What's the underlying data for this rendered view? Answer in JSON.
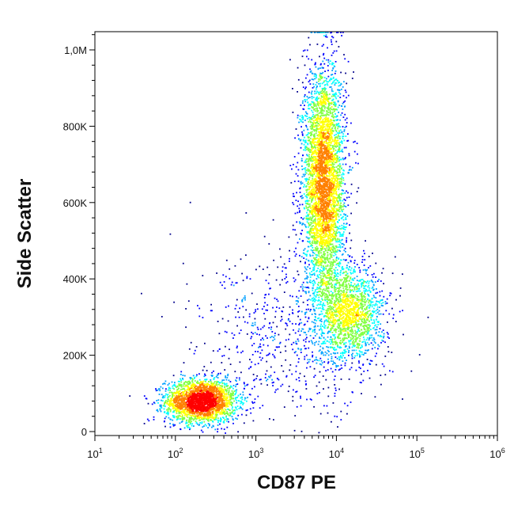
{
  "chart_data": {
    "type": "scatter",
    "title": "",
    "xlabel": "CD87 PE",
    "ylabel": "Side Scatter",
    "x_scale": "log",
    "xlim": [
      10,
      1000000
    ],
    "ylim": [
      0,
      1050000
    ],
    "grid": false,
    "x_ticks": [
      {
        "value": 10,
        "base": "10",
        "exp": "1"
      },
      {
        "value": 100,
        "base": "10",
        "exp": "2"
      },
      {
        "value": 1000,
        "base": "10",
        "exp": "3"
      },
      {
        "value": 10000,
        "base": "10",
        "exp": "4"
      },
      {
        "value": 100000,
        "base": "10",
        "exp": "5"
      },
      {
        "value": 1000000,
        "base": "10",
        "exp": "6"
      }
    ],
    "y_ticks": [
      {
        "value": 0,
        "label": "0"
      },
      {
        "value": 200000,
        "label": "200K"
      },
      {
        "value": 400000,
        "label": "400K"
      },
      {
        "value": 600000,
        "label": "600K"
      },
      {
        "value": 800000,
        "label": "800K"
      },
      {
        "value": 1000000,
        "label": "1,0M"
      }
    ],
    "colormap": [
      "#00008b",
      "#0000ff",
      "#00a0ff",
      "#00ffff",
      "#80ff40",
      "#ffff00",
      "#ff8000",
      "#ff0000"
    ],
    "populations": [
      {
        "center_x": 210,
        "center_y": 80000,
        "spread_log_x": 0.22,
        "spread_y": 28000,
        "relative_size": 0.28
      },
      {
        "center_x": 7000,
        "center_y": 650000,
        "spread_log_x": 0.13,
        "spread_y": 150000,
        "relative_size": 0.47
      },
      {
        "center_x": 15000,
        "center_y": 310000,
        "spread_log_x": 0.2,
        "spread_y": 60000,
        "relative_size": 0.17
      },
      {
        "center_x": 3000,
        "center_y": 250000,
        "spread_log_x": 0.6,
        "spread_y": 110000,
        "relative_size": 0.08
      }
    ]
  }
}
